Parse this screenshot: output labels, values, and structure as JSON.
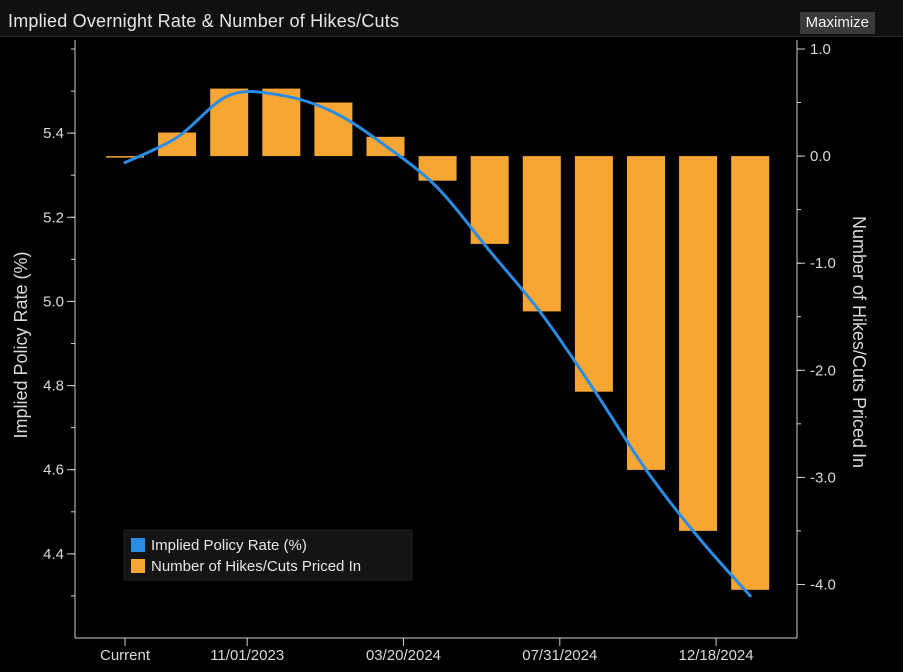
{
  "header": {
    "title": "Implied Overnight Rate & Number of Hikes/Cuts",
    "maximize_label": "Maximize"
  },
  "colors": {
    "bar": "#f7a634",
    "line": "#2b8ce6",
    "axis": "#cfcfcf",
    "background": "#000000"
  },
  "chart_data": {
    "type": "bar",
    "title": "Implied Overnight Rate & Number of Hikes/Cuts",
    "xlabel": "",
    "x_tick_labels": [
      "Current",
      "11/01/2023",
      "03/20/2024",
      "07/31/2024",
      "12/18/2024"
    ],
    "grid": false,
    "legend_placement": "bottom-left",
    "left_axis": {
      "label": "Implied Policy Rate (%)",
      "ticks": [
        "4.4",
        "4.6",
        "4.8",
        "5.0",
        "5.2",
        "5.4"
      ],
      "range": [
        4.2,
        5.6
      ]
    },
    "right_axis": {
      "label": "Number of Hikes/Cuts Priced In",
      "ticks": [
        "1.0",
        "0.0",
        "-1.0",
        "-2.0",
        "-3.0",
        "-4.0"
      ],
      "range": [
        -4.5,
        1.0
      ]
    },
    "series": [
      {
        "name": "Number of Hikes/Cuts Priced In",
        "type": "bar",
        "axis": "right",
        "values": [
          0.0,
          0.22,
          0.63,
          0.63,
          0.5,
          0.18,
          -0.23,
          -0.82,
          -1.45,
          -2.2,
          -2.93,
          -3.5,
          -4.05
        ]
      },
      {
        "name": "Implied Policy Rate (%)",
        "type": "line",
        "axis": "left",
        "values": [
          5.33,
          5.39,
          5.49,
          5.49,
          5.45,
          5.37,
          5.27,
          5.12,
          4.97,
          4.79,
          4.6,
          4.44,
          4.3
        ]
      }
    ]
  }
}
